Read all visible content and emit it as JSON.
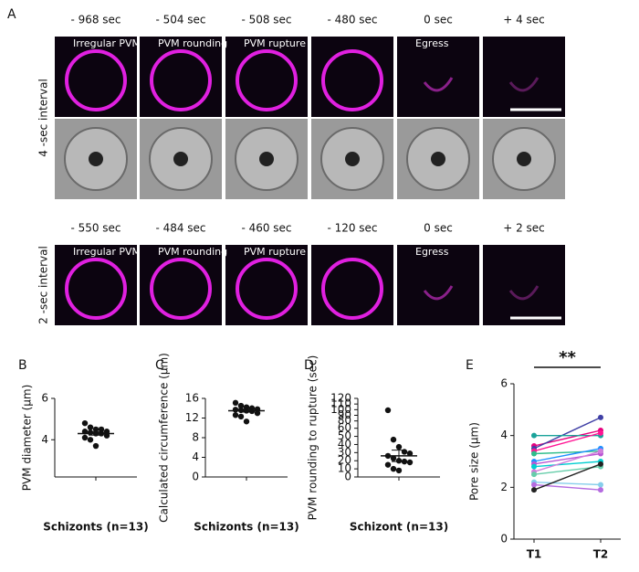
{
  "panel_a": {
    "panel_label": "A",
    "rows": [
      {
        "row_label": "4 -sec interval",
        "times": [
          "- 968 sec",
          "- 504 sec",
          "- 508 sec",
          "- 480 sec",
          "0 sec",
          "+ 4 sec"
        ]
      },
      {
        "row_label": "2 -sec interval",
        "times": [
          "- 550 sec",
          "- 484 sec",
          "- 460 sec",
          "- 120 sec",
          "0 sec",
          "+ 2 sec"
        ]
      }
    ],
    "stages": [
      "Irregular PVM",
      "PVM rounding",
      "PVM rupture",
      "Egress"
    ]
  },
  "chart_data": [
    {
      "type": "strip",
      "panel_label": "B",
      "y_label": "PVM diameter (μm)",
      "categories": [
        "Schizonts (n=13)"
      ],
      "values": [
        4.8,
        4.6,
        4.5,
        4.5,
        4.4,
        4.4,
        4.35,
        4.3,
        4.3,
        4.2,
        4.1,
        4.0,
        3.7
      ],
      "mean": 4.3,
      "error": 0.08,
      "color": "#111111",
      "ylim": [
        2.2,
        6
      ],
      "yticks": [
        4,
        6
      ]
    },
    {
      "type": "strip",
      "panel_label": "C",
      "y_label": "Calculated circumference (μm)",
      "categories": [
        "Schizonts (n=13)"
      ],
      "values": [
        15.1,
        14.5,
        14.2,
        14.0,
        13.8,
        13.7,
        13.6,
        13.5,
        13.4,
        13.0,
        12.6,
        12.3,
        11.3
      ],
      "mean": 13.5,
      "error": 0.3,
      "color": "#111111",
      "ylim": [
        0,
        16
      ],
      "yticks": [
        0,
        4,
        8,
        12,
        16
      ]
    },
    {
      "type": "strip",
      "panel_label": "D",
      "y_label": "PVM rounding to rupture (sec)",
      "categories": [
        "Schizont (n=13)"
      ],
      "values": [
        99,
        46,
        37,
        31,
        29,
        26,
        23,
        20,
        19,
        18,
        15,
        10,
        8
      ],
      "mean": 26,
      "error": 7,
      "color": "#111111",
      "ylim": [
        0,
        120
      ],
      "axis_break": [
        60,
        80
      ],
      "yticks": [
        0,
        10,
        20,
        30,
        40,
        50,
        60,
        80,
        90,
        100,
        110,
        120
      ]
    },
    {
      "type": "line",
      "panel_label": "E",
      "y_label": "Pore size (μm)",
      "categories": [
        "T1",
        "T2"
      ],
      "annotation": "**",
      "ylim": [
        0,
        6
      ],
      "yticks": [
        0,
        2,
        4,
        6
      ],
      "series": [
        {
          "color": "#e6007e",
          "values": [
            3.6,
            4.2
          ]
        },
        {
          "color": "#3f3fa5",
          "values": [
            3.5,
            4.7
          ]
        },
        {
          "color": "#1aa39a",
          "values": [
            4.0,
            4.0
          ]
        },
        {
          "color": "#ff1493",
          "values": [
            3.4,
            4.1
          ]
        },
        {
          "color": "#2ebd8b",
          "values": [
            3.3,
            3.4
          ]
        },
        {
          "color": "#1e90ff",
          "values": [
            3.0,
            3.5
          ]
        },
        {
          "color": "#ba55d3",
          "values": [
            2.9,
            3.3
          ]
        },
        {
          "color": "#00ced1",
          "values": [
            2.8,
            3.0
          ]
        },
        {
          "color": "#d27edb",
          "values": [
            2.6,
            3.4
          ]
        },
        {
          "color": "#66cdaa",
          "values": [
            2.5,
            2.8
          ]
        },
        {
          "color": "#87ceeb",
          "values": [
            2.2,
            2.1
          ]
        },
        {
          "color": "#b56ce0",
          "values": [
            2.1,
            1.9
          ]
        },
        {
          "color": "#222222",
          "values": [
            1.9,
            2.9
          ]
        }
      ]
    }
  ]
}
